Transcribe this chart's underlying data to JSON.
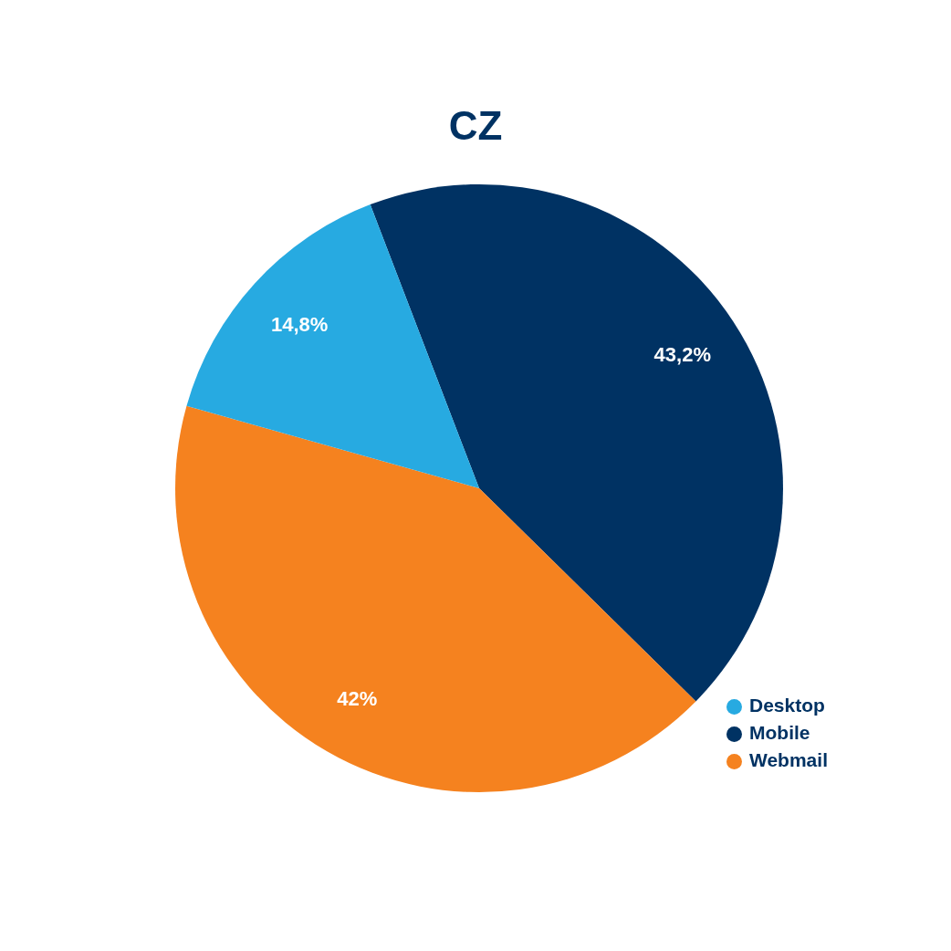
{
  "chart_data": {
    "type": "pie",
    "title": "CZ",
    "categories": [
      "Mobile",
      "Webmail",
      "Desktop"
    ],
    "values": [
      43.2,
      42,
      14.8
    ],
    "value_labels": [
      "43,2%",
      "42%",
      "14,8%"
    ],
    "colors": [
      "#003263",
      "#f5821f",
      "#27aae1"
    ],
    "legend": "bottom right"
  }
}
